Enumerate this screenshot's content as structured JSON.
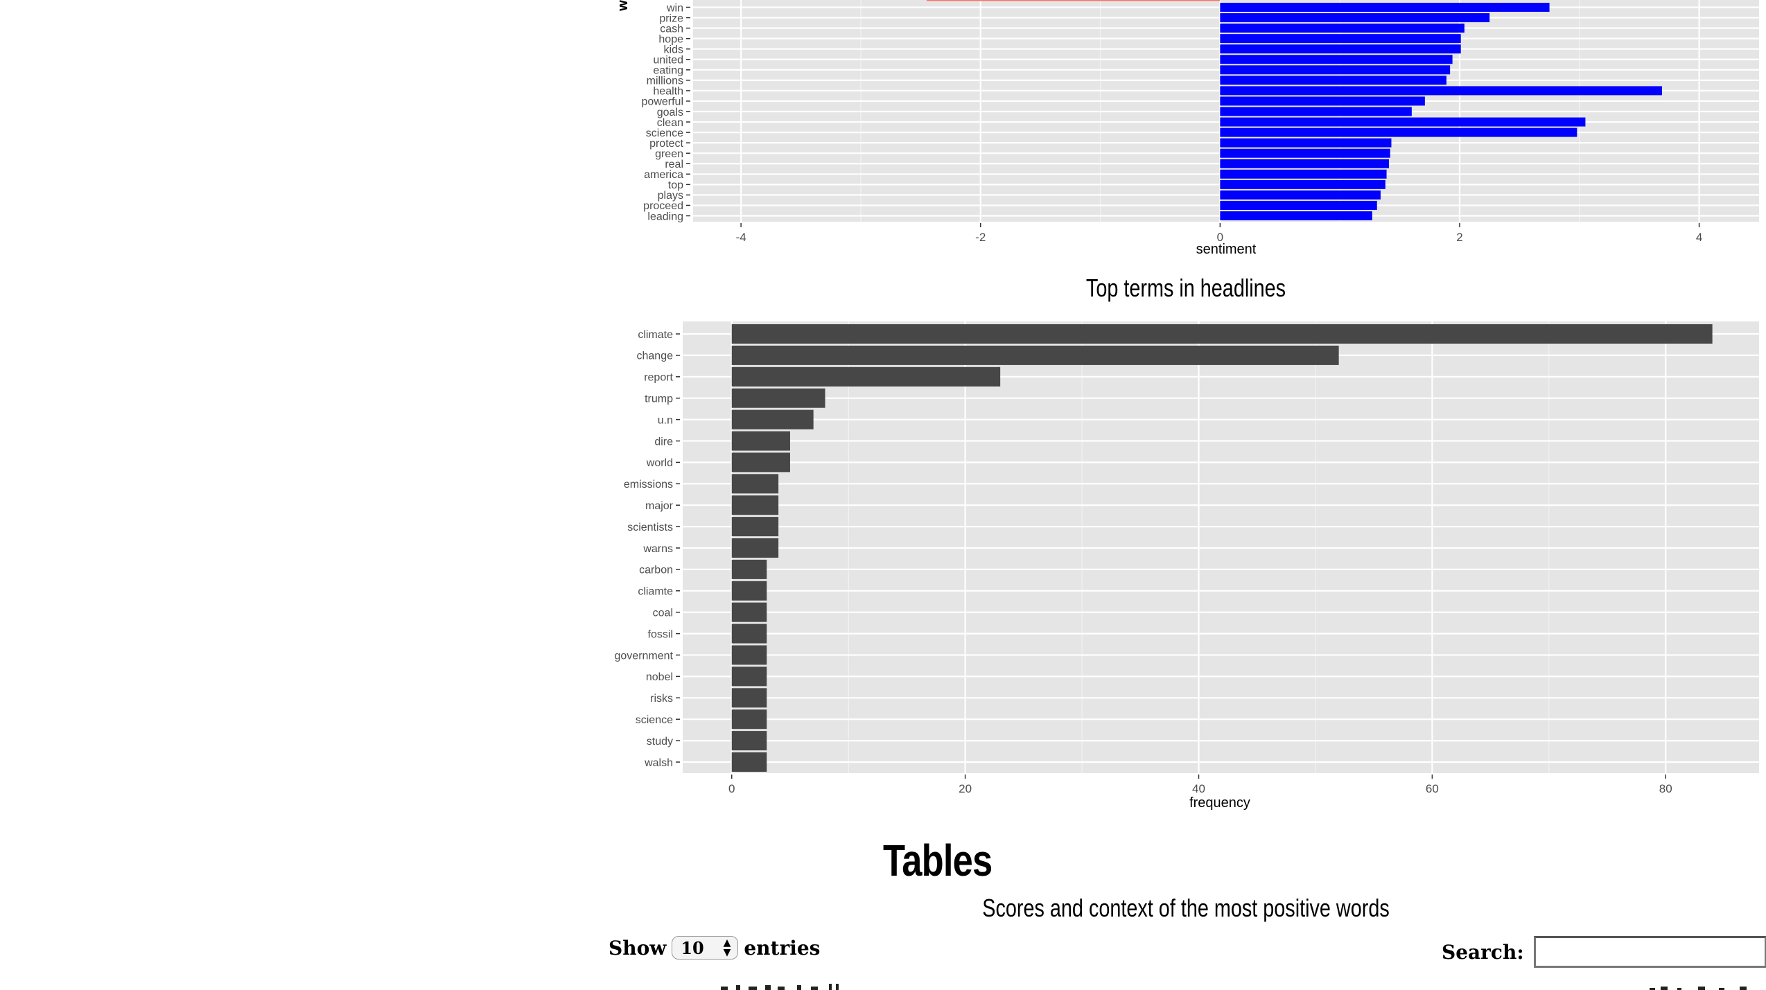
{
  "charts": [
    {
      "type": "bar",
      "orientation": "horizontal",
      "xlabel": "sentiment",
      "ylabel_partial": "w",
      "xticks": [
        "-4",
        "-2",
        "0",
        "2",
        "4"
      ],
      "xlim": [
        -4.4,
        4.5
      ],
      "categories": [
        "leading",
        "proceed",
        "plays",
        "top",
        "america",
        "real",
        "green",
        "protect",
        "science",
        "clean",
        "goals",
        "powerful",
        "health",
        "millions",
        "eating",
        "united",
        "kids",
        "hope",
        "cash",
        "prize",
        "win"
      ],
      "values": [
        1.27,
        1.31,
        1.34,
        1.38,
        1.39,
        1.41,
        1.42,
        1.43,
        2.98,
        3.05,
        1.6,
        1.71,
        3.69,
        1.89,
        1.92,
        1.94,
        2.01,
        2.01,
        2.04,
        2.25,
        2.75
      ],
      "partial_negative_bar_value": -2.45,
      "positive_color": "#0000ff",
      "negative_color": "#f8766d"
    },
    {
      "type": "bar",
      "orientation": "horizontal",
      "title": "Top terms in headlines",
      "xlabel": "frequency",
      "xticks": [
        "0",
        "20",
        "40",
        "60",
        "80"
      ],
      "xlim": [
        -4.2,
        88
      ],
      "categories": [
        "walsh",
        "study",
        "science",
        "risks",
        "nobel",
        "government",
        "fossil",
        "coal",
        "cliamte",
        "carbon",
        "warns",
        "scientists",
        "major",
        "emissions",
        "world",
        "dire",
        "u.n",
        "trump",
        "report",
        "change",
        "climate"
      ],
      "values": [
        3,
        3,
        3,
        3,
        3,
        3,
        3,
        3,
        3,
        3,
        4,
        4,
        4,
        4,
        5,
        5,
        7,
        8,
        23,
        52,
        84
      ],
      "bar_color": "#474747"
    }
  ],
  "page": {
    "heading": "Tables",
    "subtitle": "Scores and context of the most positive words"
  },
  "table_controls": {
    "show_label": "Show",
    "page_length": "10",
    "entries_label": "entries",
    "search_label": "Search:",
    "search_value": ""
  }
}
